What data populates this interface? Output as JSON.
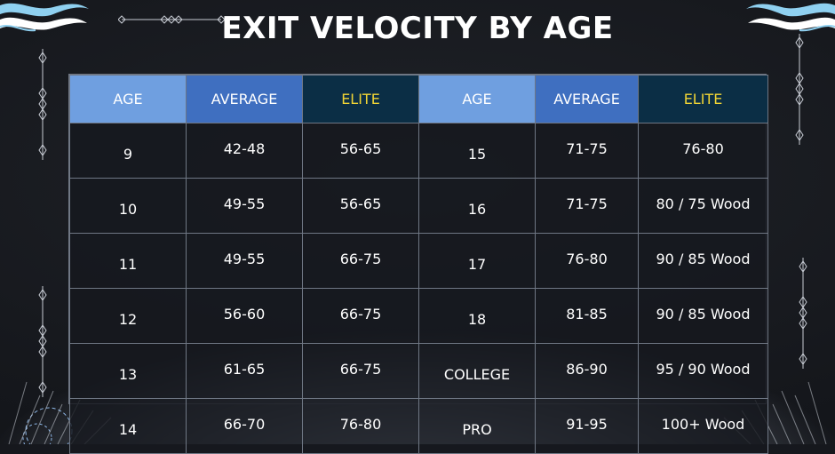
{
  "title": "EXIT VELOCITY BY AGE",
  "colors": {
    "header_age": "#6f9fe0",
    "header_average": "#3f6fc0",
    "header_elite": "#0b2e45",
    "elite_text": "#f0d435",
    "border": "#6f7784"
  },
  "headers": [
    "AGE",
    "AVERAGE",
    "ELITE",
    "AGE",
    "AVERAGE",
    "ELITE"
  ],
  "rows": [
    [
      "9",
      "42-48",
      "56-65",
      "15",
      "71-75",
      "76-80"
    ],
    [
      "10",
      "49-55",
      "56-65",
      "16",
      "71-75",
      "80 / 75 Wood"
    ],
    [
      "11",
      "49-55",
      "66-75",
      "17",
      "76-80",
      "90 / 85 Wood"
    ],
    [
      "12",
      "56-60",
      "66-75",
      "18",
      "81-85",
      "90 / 85 Wood"
    ],
    [
      "13",
      "61-65",
      "66-75",
      "COLLEGE",
      "86-90",
      "95 / 90 Wood"
    ],
    [
      "14",
      "66-70",
      "76-80",
      "PRO",
      "91-95",
      "100+ Wood"
    ]
  ],
  "icons": {
    "top_left": "wave-ornament-icon",
    "top_right": "wave-ornament-icon",
    "left_side": "diamond-chain-icon",
    "right_side": "diamond-chain-icon",
    "top_center": "diamond-line-icon"
  }
}
